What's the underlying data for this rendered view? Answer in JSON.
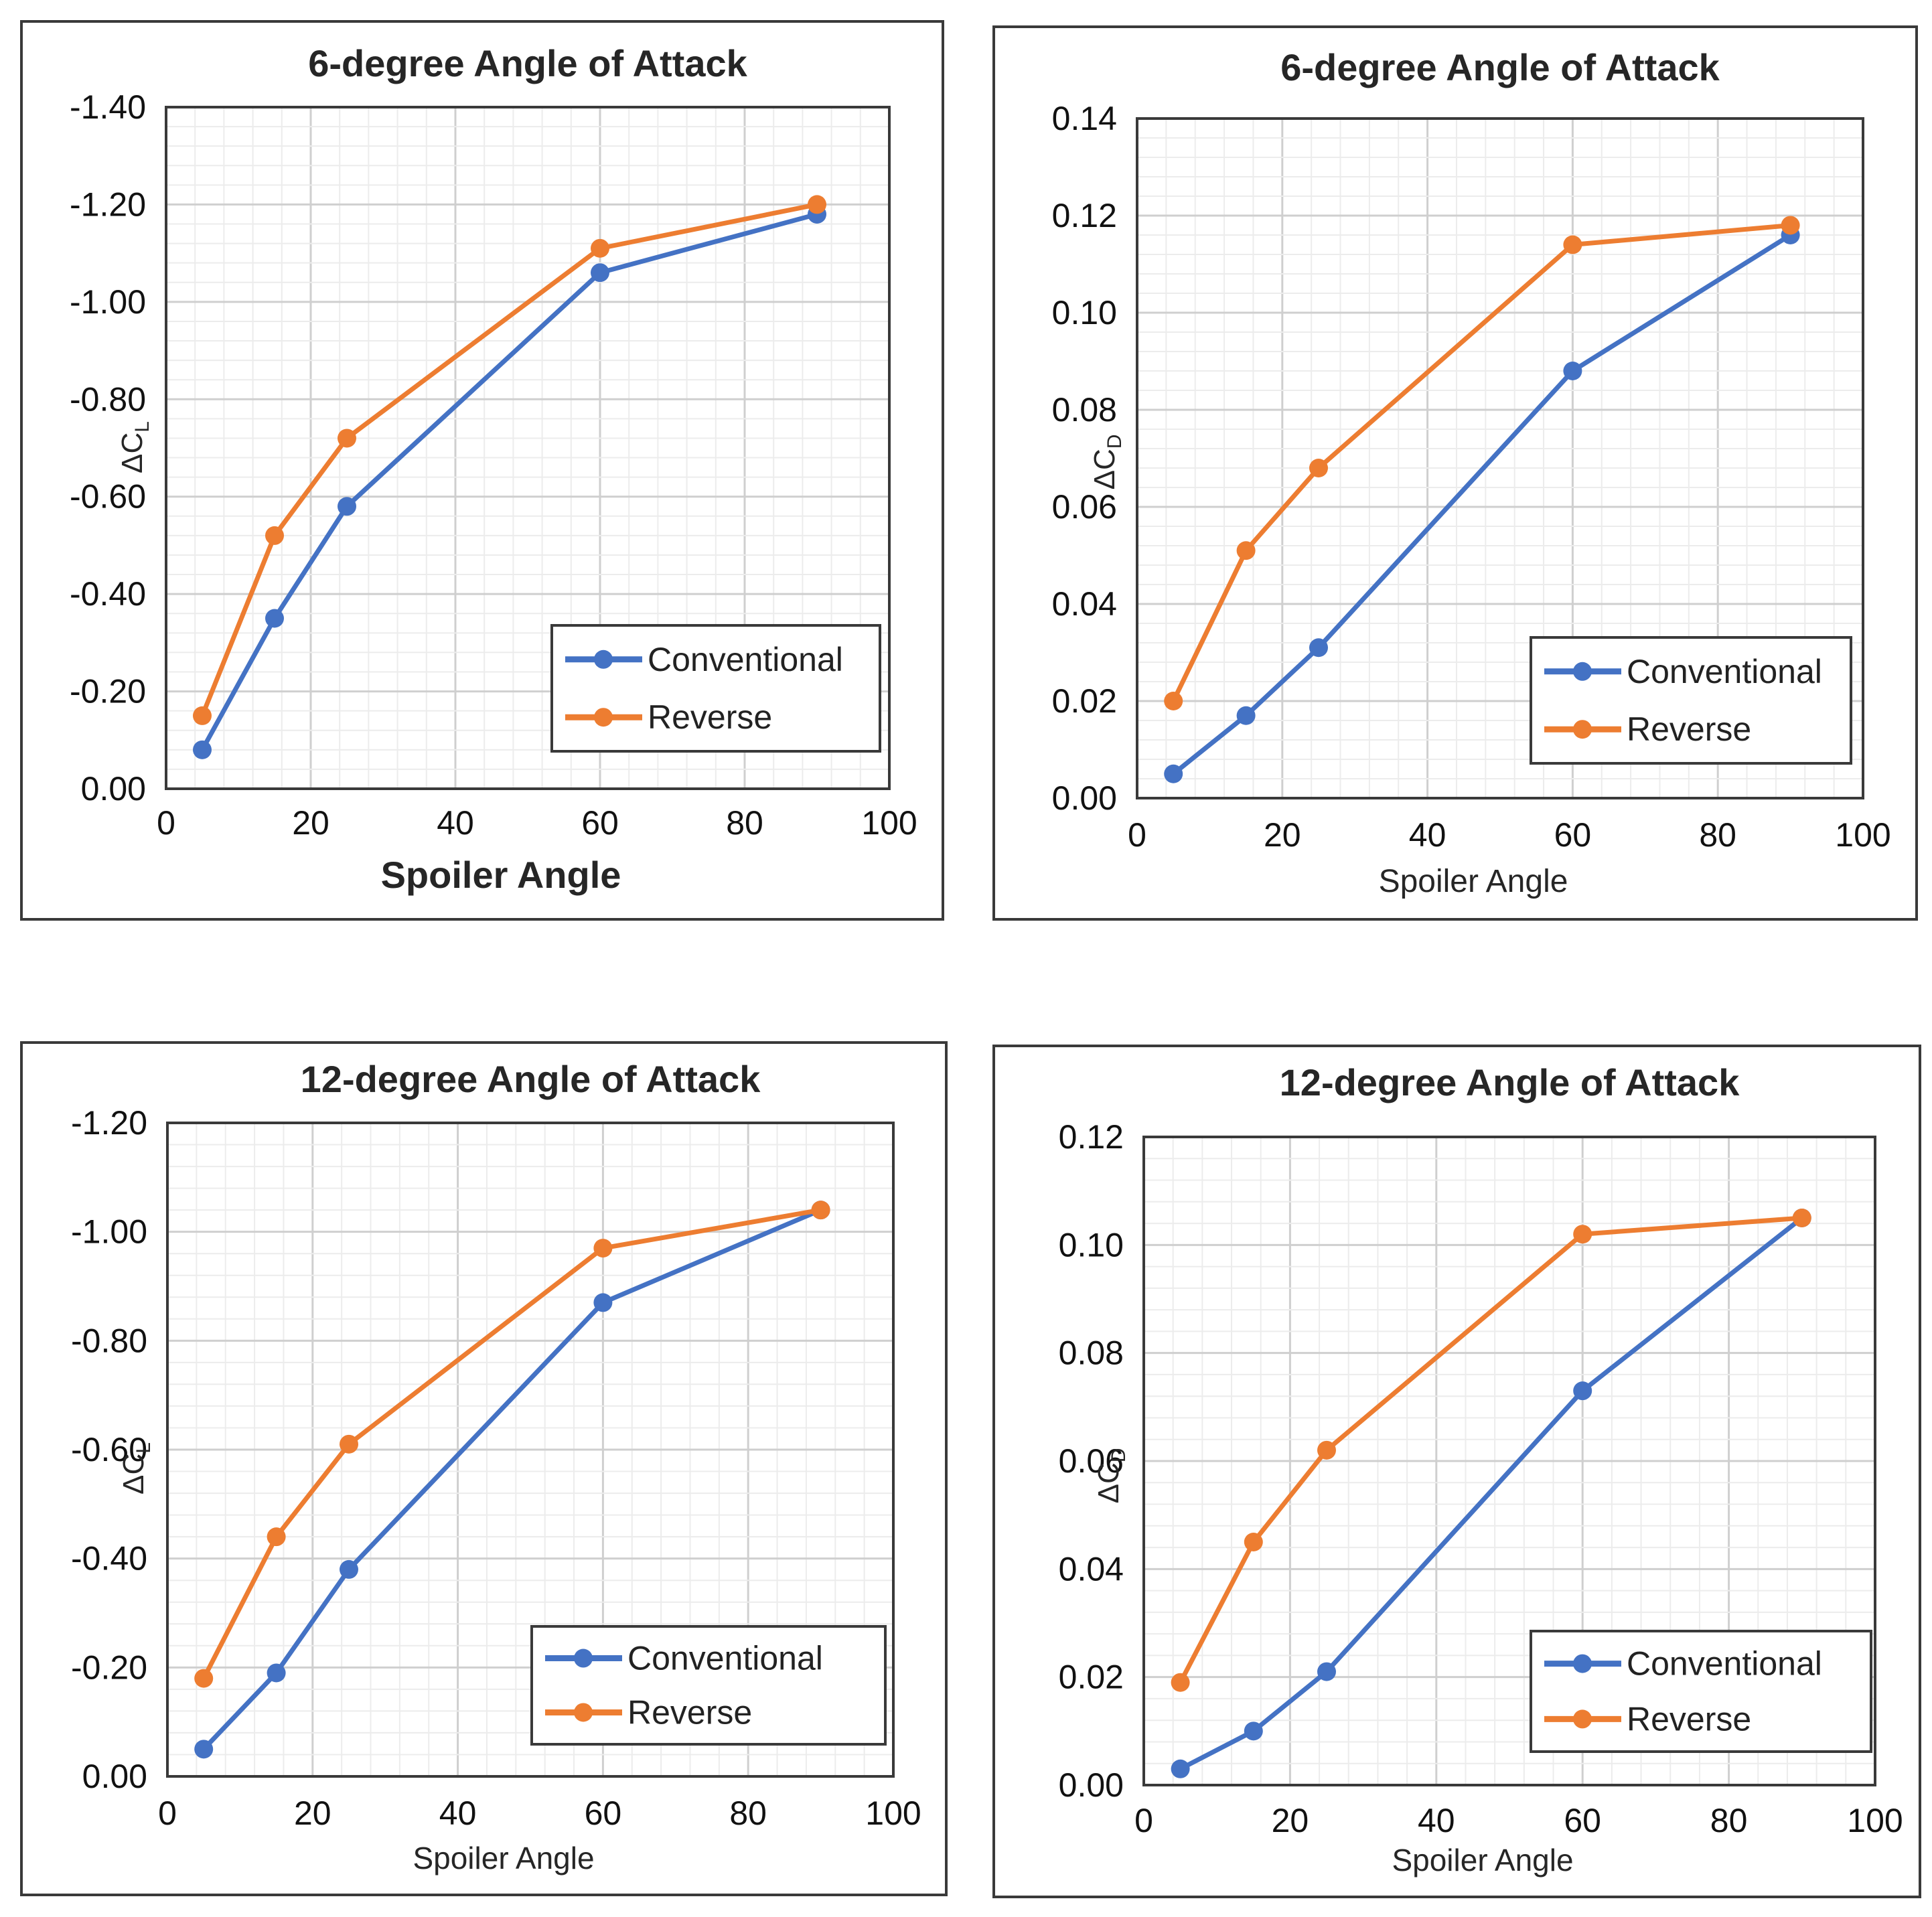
{
  "colors": {
    "conventional": "#4472c4",
    "reverse": "#ed7d31",
    "grid_major": "#cfcfcf",
    "grid_minor": "#ececec",
    "frame": "#3a3a3a"
  },
  "chart_data": [
    {
      "type": "line",
      "title": "6-degree Angle of Attack",
      "xlabel": "Spoiler Angle",
      "ylabel": "ΔC",
      "ylabel_sub": "L",
      "xlim": [
        0,
        100
      ],
      "ylim": [
        0,
        -1.4
      ],
      "xticks": [
        "0",
        "20",
        "40",
        "60",
        "80",
        "100"
      ],
      "yticks": [
        "0.00",
        "-0.20",
        "-0.40",
        "-0.60",
        "-0.80",
        "-1.00",
        "-1.20",
        "-1.40"
      ],
      "legend_position": "bottom-right",
      "x": [
        5,
        15,
        25,
        60,
        90
      ],
      "series": [
        {
          "name": "Conventional",
          "values": [
            -0.08,
            -0.35,
            -0.58,
            -1.06,
            -1.18
          ]
        },
        {
          "name": "Reverse",
          "values": [
            -0.15,
            -0.52,
            -0.72,
            -1.11,
            -1.2
          ]
        }
      ]
    },
    {
      "type": "line",
      "title": "6-degree Angle of Attack",
      "xlabel": "Spoiler Angle",
      "ylabel": "ΔC",
      "ylabel_sub": "D",
      "xlim": [
        0,
        100
      ],
      "ylim": [
        0,
        0.14
      ],
      "xticks": [
        "0",
        "20",
        "40",
        "60",
        "80",
        "100"
      ],
      "yticks": [
        "0.00",
        "0.02",
        "0.04",
        "0.06",
        "0.08",
        "0.10",
        "0.12",
        "0.14"
      ],
      "legend_position": "bottom-right",
      "x": [
        5,
        15,
        25,
        60,
        90
      ],
      "series": [
        {
          "name": "Conventional",
          "values": [
            0.005,
            0.017,
            0.031,
            0.088,
            0.116
          ]
        },
        {
          "name": "Reverse",
          "values": [
            0.02,
            0.051,
            0.068,
            0.114,
            0.118
          ]
        }
      ]
    },
    {
      "type": "line",
      "title": "12-degree Angle of Attack",
      "xlabel": "Spoiler Angle",
      "ylabel": "ΔC",
      "ylabel_sub": "L",
      "xlim": [
        0,
        100
      ],
      "ylim": [
        0,
        -1.2
      ],
      "xticks": [
        "0",
        "20",
        "40",
        "60",
        "80",
        "100"
      ],
      "yticks": [
        "0.00",
        "-0.20",
        "-0.40",
        "-0.60",
        "-0.80",
        "-1.00",
        "-1.20"
      ],
      "legend_position": "bottom-right",
      "x": [
        5,
        15,
        25,
        60,
        90
      ],
      "series": [
        {
          "name": "Conventional",
          "values": [
            -0.05,
            -0.19,
            -0.38,
            -0.87,
            -1.04
          ]
        },
        {
          "name": "Reverse",
          "values": [
            -0.18,
            -0.44,
            -0.61,
            -0.97,
            -1.04
          ]
        }
      ]
    },
    {
      "type": "line",
      "title": "12-degree Angle of Attack",
      "xlabel": "Spoiler Angle",
      "ylabel": "ΔC",
      "ylabel_sub": "D",
      "xlim": [
        0,
        100
      ],
      "ylim": [
        0,
        0.12
      ],
      "xticks": [
        "0",
        "20",
        "40",
        "60",
        "80",
        "100"
      ],
      "yticks": [
        "0.00",
        "0.02",
        "0.04",
        "0.06",
        "0.08",
        "0.10",
        "0.12"
      ],
      "legend_position": "bottom-right",
      "x": [
        5,
        15,
        25,
        60,
        90
      ],
      "series": [
        {
          "name": "Conventional",
          "values": [
            0.003,
            0.01,
            0.021,
            0.073,
            0.105
          ]
        },
        {
          "name": "Reverse",
          "values": [
            0.019,
            0.045,
            0.062,
            0.102,
            0.105
          ]
        }
      ]
    }
  ]
}
